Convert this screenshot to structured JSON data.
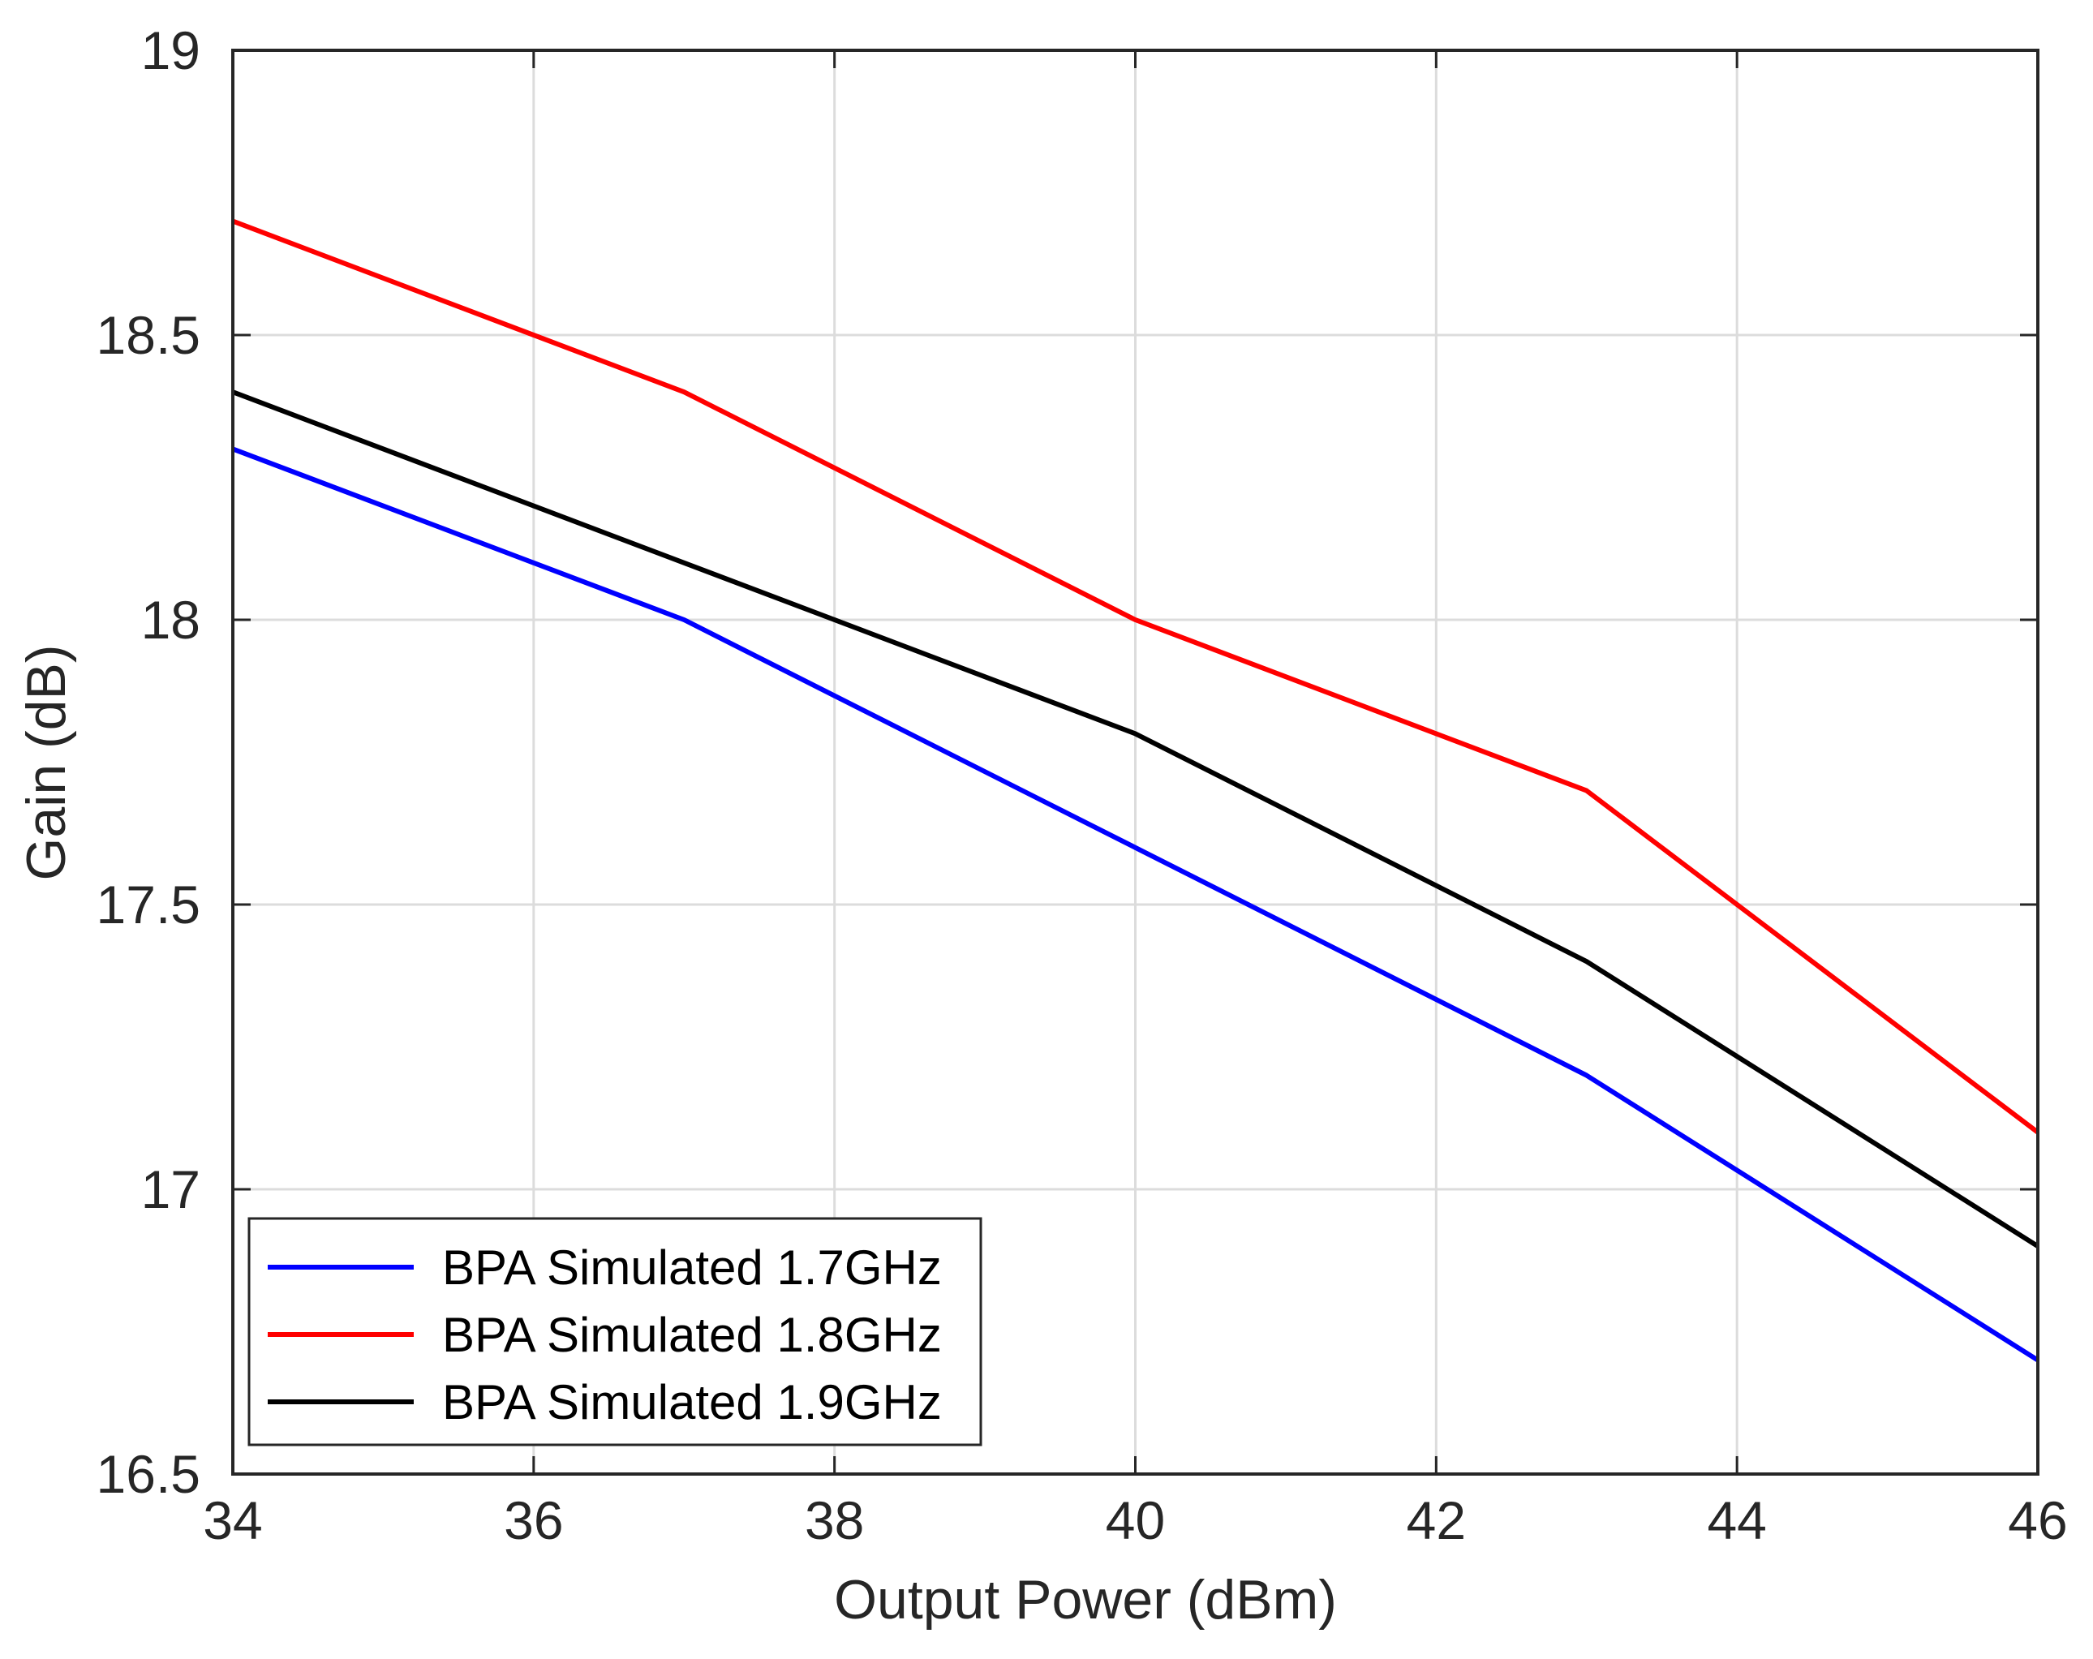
{
  "chart_data": {
    "type": "line",
    "title": "",
    "xlabel": "Output Power (dBm)",
    "ylabel": "Gain (dB)",
    "xlim": [
      34,
      46
    ],
    "ylim": [
      16.5,
      19
    ],
    "grid": true,
    "legend_position": "bottom-left",
    "x": [
      34,
      37,
      40,
      43,
      46
    ],
    "x_ticks": [
      "34",
      "36",
      "38",
      "40",
      "42",
      "44",
      "46"
    ],
    "y_ticks": [
      "16.5",
      "17",
      "17.5",
      "18",
      "18.5",
      "19"
    ],
    "series": [
      {
        "name": "BPA Simulated 1.7GHz",
        "color": "#0000ff",
        "values": [
          18.3,
          18.0,
          17.6,
          17.2,
          16.7
        ]
      },
      {
        "name": "BPA Simulated 1.8GHz",
        "color": "#ff0000",
        "values": [
          18.7,
          18.4,
          18.0,
          17.7,
          17.1
        ]
      },
      {
        "name": "BPA Simulated 1.9GHz",
        "color": "#000000",
        "values": [
          18.4,
          18.1,
          17.8,
          17.4,
          16.9
        ]
      }
    ]
  }
}
